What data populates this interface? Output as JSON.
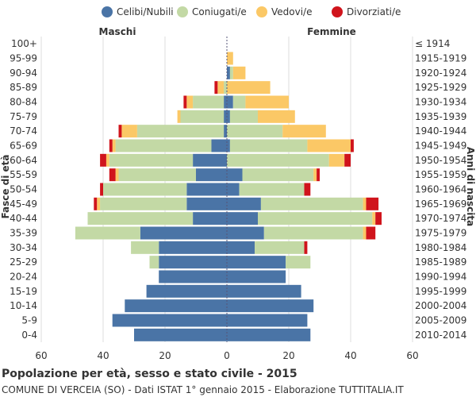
{
  "chart_data": {
    "type": "bar",
    "orientation": "horizontal-population-pyramid",
    "title": "Popolazione per età, sesso e stato civile - 2015",
    "subtitle": "COMUNE DI VERCEIA (SO) - Dati ISTAT 1° gennaio 2015 - Elaborazione TUTTITALIA.IT",
    "left_side_label": "Maschi",
    "right_side_label": "Femmine",
    "ylabel": "Fasce di età",
    "ylabel_right": "Anni di nascita",
    "xlim": [
      -60,
      60
    ],
    "x_ticks": [
      -60,
      -40,
      -20,
      0,
      20,
      40,
      60
    ],
    "x_tick_labels": [
      "60",
      "40",
      "20",
      "0",
      "20",
      "40",
      "60"
    ],
    "legend_position": "top",
    "series": [
      {
        "name": "Celibi/Nubili",
        "color": "#4a74a6"
      },
      {
        "name": "Coniugati/e",
        "color": "#c3d9a5"
      },
      {
        "name": "Vedovi/e",
        "color": "#fbc866"
      },
      {
        "name": "Divorziati/e",
        "color": "#d0141c"
      }
    ],
    "categories": [
      "100+",
      "95-99",
      "90-94",
      "85-89",
      "80-84",
      "75-79",
      "70-74",
      "65-69",
      "60-64",
      "55-59",
      "50-54",
      "45-49",
      "40-44",
      "35-39",
      "30-34",
      "25-29",
      "20-24",
      "15-19",
      "10-14",
      "5-9",
      "0-4"
    ],
    "birth_years": [
      "≤ 1914",
      "1915-1919",
      "1920-1924",
      "1925-1929",
      "1930-1934",
      "1935-1939",
      "1940-1944",
      "1945-1949",
      "1950-1954",
      "1955-1959",
      "1960-1964",
      "1965-1969",
      "1970-1974",
      "1975-1979",
      "1980-1984",
      "1985-1989",
      "1990-1994",
      "1995-1999",
      "2000-2004",
      "2005-2009",
      "2010-2014"
    ],
    "males": [
      [
        0,
        0,
        0,
        0
      ],
      [
        0,
        0,
        0,
        0
      ],
      [
        0,
        0,
        0,
        0
      ],
      [
        0,
        1,
        2,
        1
      ],
      [
        1,
        10,
        2,
        1
      ],
      [
        1,
        14,
        1,
        0
      ],
      [
        1,
        28,
        5,
        1
      ],
      [
        5,
        31,
        1,
        1
      ],
      [
        11,
        27,
        1,
        2
      ],
      [
        10,
        25,
        1,
        2
      ],
      [
        13,
        27,
        0,
        1
      ],
      [
        13,
        28,
        1,
        1
      ],
      [
        11,
        34,
        0,
        0
      ],
      [
        28,
        21,
        0,
        0
      ],
      [
        22,
        9,
        0,
        0
      ],
      [
        22,
        3,
        0,
        0
      ],
      [
        22,
        0,
        0,
        0
      ],
      [
        26,
        0,
        0,
        0
      ],
      [
        33,
        0,
        0,
        0
      ],
      [
        37,
        0,
        0,
        0
      ],
      [
        30,
        0,
        0,
        0
      ]
    ],
    "females": [
      [
        0,
        0,
        0,
        0
      ],
      [
        0,
        0,
        2,
        0
      ],
      [
        1,
        1,
        4,
        0
      ],
      [
        0,
        0,
        14,
        0
      ],
      [
        2,
        4,
        14,
        0
      ],
      [
        1,
        9,
        12,
        0
      ],
      [
        0,
        18,
        14,
        0
      ],
      [
        1,
        25,
        14,
        1
      ],
      [
        0,
        33,
        5,
        2
      ],
      [
        5,
        23,
        1,
        1
      ],
      [
        4,
        21,
        0,
        2
      ],
      [
        11,
        33,
        1,
        4
      ],
      [
        10,
        37,
        1,
        2
      ],
      [
        12,
        32,
        1,
        3
      ],
      [
        9,
        16,
        0,
        1
      ],
      [
        19,
        8,
        0,
        0
      ],
      [
        19,
        0,
        0,
        0
      ],
      [
        24,
        0,
        0,
        0
      ],
      [
        28,
        0,
        0,
        0
      ],
      [
        26,
        0,
        0,
        0
      ],
      [
        27,
        0,
        0,
        0
      ]
    ]
  }
}
